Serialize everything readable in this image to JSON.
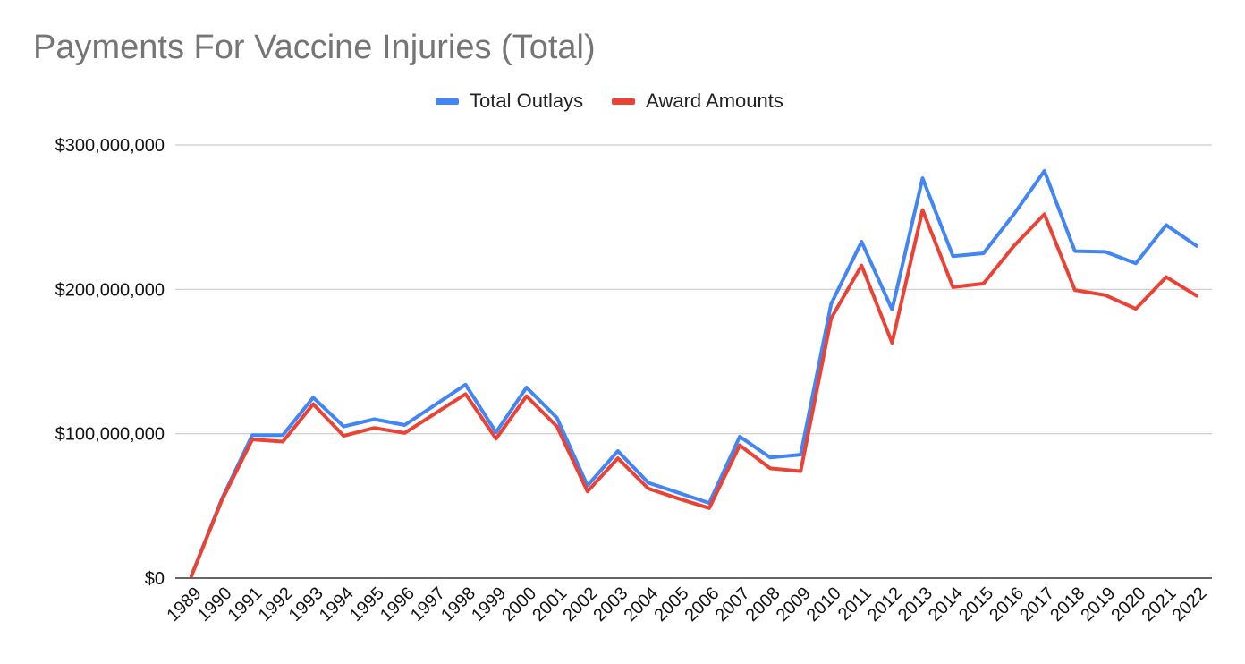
{
  "chart_data": {
    "type": "line",
    "title": "Payments For Vaccine Injuries (Total)",
    "xlabel": "",
    "ylabel": "",
    "x": [
      "1989",
      "1990",
      "1991",
      "1992",
      "1993",
      "1994",
      "1995",
      "1996",
      "1997",
      "1998",
      "1999",
      "2000",
      "2001",
      "2002",
      "2003",
      "2004",
      "2005",
      "2006",
      "2007",
      "2008",
      "2009",
      "2010",
      "2011",
      "2012",
      "2013",
      "2014",
      "2015",
      "2016",
      "2017",
      "2018",
      "2019",
      "2020",
      "2021",
      "2022"
    ],
    "series": [
      {
        "name": "Total Outlays",
        "color": "#4285f4",
        "values": [
          1500000,
          55000000,
          99000000,
          99000000,
          125000000,
          105000000,
          110000000,
          106000000,
          120000000,
          134000000,
          101000000,
          132000000,
          111000000,
          64000000,
          88000000,
          66000000,
          59000000,
          52000000,
          98000000,
          83500000,
          85500000,
          190000000,
          233000000,
          186000000,
          277000000,
          223000000,
          225000000,
          252000000,
          282000000,
          226500000,
          226000000,
          218000000,
          244500000,
          230000000
        ]
      },
      {
        "name": "Award Amounts",
        "color": "#ea4335",
        "values": [
          1500000,
          54000000,
          96000000,
          94500000,
          120500000,
          98500000,
          104000000,
          100500000,
          114000000,
          127500000,
          96500000,
          126000000,
          105000000,
          60000000,
          83000000,
          62000000,
          55000000,
          48500000,
          92000000,
          76000000,
          74000000,
          180000000,
          216500000,
          163000000,
          255000000,
          201500000,
          204000000,
          230000000,
          252000000,
          199500000,
          196000000,
          186500000,
          208500000,
          195500000
        ]
      }
    ],
    "yticks": [
      0,
      100000000,
      200000000,
      300000000
    ],
    "ytick_labels": [
      "$0",
      "$100,000,000",
      "$200,000,000",
      "$300,000,000"
    ],
    "ylim": [
      0,
      300000000
    ],
    "grid": true,
    "legend_position": "top"
  }
}
